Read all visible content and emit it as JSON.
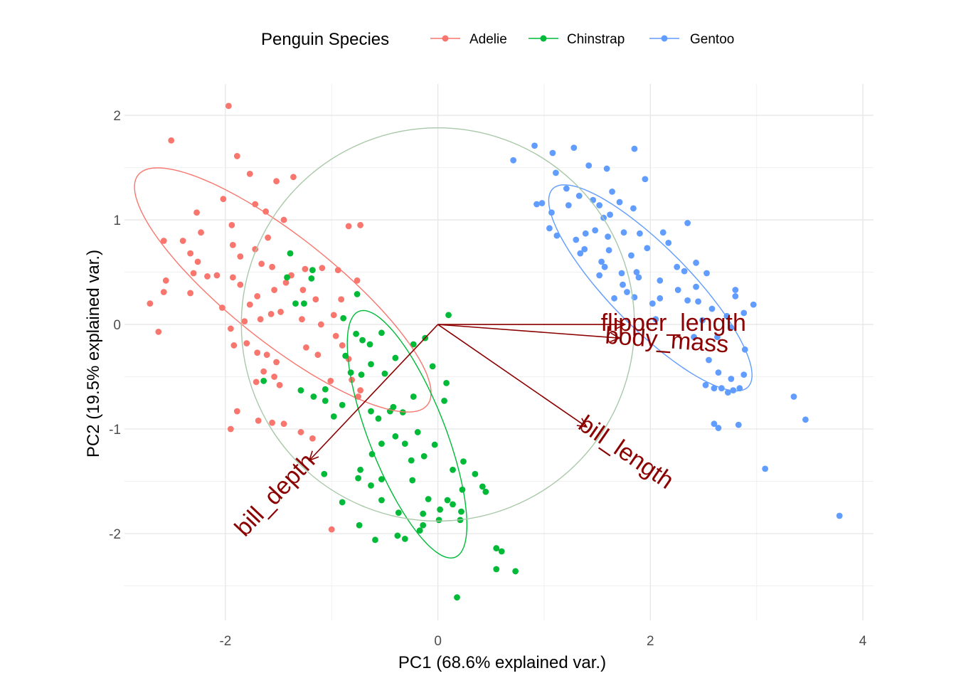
{
  "chart_data": {
    "type": "scatter",
    "title": "",
    "xlabel": "PC1 (68.6% explained var.)",
    "ylabel": "PC2 (19.5% explained var.)",
    "xlim": [
      -2.95,
      4.1
    ],
    "ylim": [
      -2.83,
      2.3
    ],
    "x_ticks": [
      -2,
      0,
      2,
      4
    ],
    "y_ticks": [
      -2,
      -1,
      0,
      1,
      2
    ],
    "x_tick_labels": [
      "-2",
      "0",
      "2",
      "4"
    ],
    "y_tick_labels": [
      "-2",
      "-1",
      "0",
      "1",
      "2"
    ],
    "grid": true,
    "legend": {
      "title": "Penguin Species",
      "placement": "top",
      "entries": [
        "Adelie",
        "Chinstrap",
        "Gentoo"
      ]
    },
    "circle": {
      "center": [
        0,
        0
      ],
      "radius": 1.85,
      "color": "#a8c8a8"
    },
    "arrows": [
      {
        "label": "flipper_length",
        "end": [
          1.76,
          0.0
        ]
      },
      {
        "label": "body_mass",
        "end": [
          1.71,
          -0.13
        ]
      },
      {
        "label": "bill_length",
        "end": [
          1.4,
          -0.98
        ]
      },
      {
        "label": "bill_depth",
        "end": [
          -1.21,
          -1.3
        ]
      }
    ],
    "arrow_color": "#8b0000",
    "series": [
      {
        "name": "Adelie",
        "color": "#f8766d",
        "ellipse": {
          "center": [
            -1.46,
            0.33
          ],
          "semi_axes": [
            1.75,
            0.5
          ],
          "angle_deg": -39
        },
        "points": [
          [
            -1.97,
            2.09
          ],
          [
            -2.51,
            1.76
          ],
          [
            -1.89,
            1.61
          ],
          [
            -1.77,
            1.44
          ],
          [
            -1.52,
            1.37
          ],
          [
            -1.36,
            1.41
          ],
          [
            -2.27,
            1.07
          ],
          [
            -2.02,
            1.2
          ],
          [
            -2.23,
            0.88
          ],
          [
            -1.72,
            1.15
          ],
          [
            -1.62,
            1.08
          ],
          [
            -1.94,
            0.95
          ],
          [
            -2.4,
            0.8
          ],
          [
            -2.33,
            0.68
          ],
          [
            -2.26,
            0.6
          ],
          [
            -1.45,
            1.0
          ],
          [
            -1.6,
            0.83
          ],
          [
            -2.08,
            0.47
          ],
          [
            -2.17,
            0.46
          ],
          [
            -2.3,
            0.49
          ],
          [
            -2.33,
            0.3
          ],
          [
            -2.71,
            0.2
          ],
          [
            -1.93,
            0.45
          ],
          [
            -2.03,
            0.16
          ],
          [
            -1.86,
            0.38
          ],
          [
            -1.72,
            0.72
          ],
          [
            -1.86,
            0.65
          ],
          [
            -1.93,
            0.76
          ],
          [
            -1.66,
            0.58
          ],
          [
            -1.56,
            0.55
          ],
          [
            -1.38,
            0.47
          ],
          [
            -1.25,
            0.53
          ],
          [
            -1.09,
            0.54
          ],
          [
            -0.94,
            0.52
          ],
          [
            -0.84,
            0.94
          ],
          [
            -1.15,
            0.24
          ],
          [
            -1.27,
            0.33
          ],
          [
            -1.43,
            0.4
          ],
          [
            -1.54,
            0.33
          ],
          [
            -1.7,
            0.27
          ],
          [
            -1.77,
            0.19
          ],
          [
            -1.82,
            0.03
          ],
          [
            -1.95,
            -0.04
          ],
          [
            -1.67,
            0.05
          ],
          [
            -1.57,
            0.1
          ],
          [
            -1.48,
            0.12
          ],
          [
            -1.28,
            0.05
          ],
          [
            -1.1,
            0.0
          ],
          [
            -0.98,
            0.09
          ],
          [
            -0.91,
            0.24
          ],
          [
            -1.92,
            -0.2
          ],
          [
            -1.8,
            -0.18
          ],
          [
            -1.7,
            -0.27
          ],
          [
            -1.61,
            -0.29
          ],
          [
            -1.52,
            -0.36
          ],
          [
            -1.64,
            -0.45
          ],
          [
            -1.54,
            -0.5
          ],
          [
            -1.71,
            -0.55
          ],
          [
            -1.49,
            -0.58
          ],
          [
            -1.24,
            -0.22
          ],
          [
            -1.13,
            -0.29
          ],
          [
            -0.96,
            -0.11
          ],
          [
            -0.9,
            -0.2
          ],
          [
            -0.84,
            -0.33
          ],
          [
            -0.81,
            -0.53
          ],
          [
            -0.73,
            -0.63
          ],
          [
            -1.01,
            -0.54
          ],
          [
            -1.89,
            -0.83
          ],
          [
            -1.95,
            -1.0
          ],
          [
            -1.69,
            -0.92
          ],
          [
            -1.56,
            -0.94
          ],
          [
            -1.45,
            -0.95
          ],
          [
            -1.29,
            -1.03
          ],
          [
            -1.18,
            -1.09
          ],
          [
            -0.75,
            -0.69
          ],
          [
            -0.76,
            0.42
          ],
          [
            -0.73,
            0.95
          ],
          [
            -1.0,
            -1.96
          ],
          [
            -2.56,
            0.42
          ],
          [
            -2.58,
            0.31
          ],
          [
            -2.63,
            -0.07
          ],
          [
            -2.58,
            0.8
          ]
        ]
      },
      {
        "name": "Chinstrap",
        "color": "#00ba38",
        "ellipse": {
          "center": [
            -0.29,
            -1.05
          ],
          "semi_axes": [
            1.26,
            0.36
          ],
          "angle_deg": -69
        },
        "points": [
          [
            -1.39,
            0.68
          ],
          [
            -1.18,
            0.52
          ],
          [
            -1.42,
            0.45
          ],
          [
            -1.19,
            0.44
          ],
          [
            -1.26,
            0.2
          ],
          [
            -1.34,
            0.2
          ],
          [
            -0.76,
            0.29
          ],
          [
            -0.89,
            0.06
          ],
          [
            -0.77,
            -0.09
          ],
          [
            -0.71,
            -0.15
          ],
          [
            -0.64,
            -0.19
          ],
          [
            -0.87,
            -0.3
          ],
          [
            -0.82,
            -0.46
          ],
          [
            -0.72,
            -0.48
          ],
          [
            -0.63,
            -0.38
          ],
          [
            -0.53,
            -0.08
          ],
          [
            -0.4,
            -0.32
          ],
          [
            -0.5,
            -0.47
          ],
          [
            -0.23,
            -0.19
          ],
          [
            -0.12,
            -0.13
          ],
          [
            0.1,
            0.09
          ],
          [
            -0.05,
            -0.4
          ],
          [
            0.08,
            -0.56
          ],
          [
            0.06,
            -0.73
          ],
          [
            -0.23,
            -0.69
          ],
          [
            -0.33,
            -0.84
          ],
          [
            -0.45,
            -0.83
          ],
          [
            -0.56,
            -0.9
          ],
          [
            -0.63,
            -0.83
          ],
          [
            -0.9,
            -0.77
          ],
          [
            -0.98,
            -0.88
          ],
          [
            -0.4,
            -1.07
          ],
          [
            -0.31,
            -1.14
          ],
          [
            -0.19,
            -1.03
          ],
          [
            -0.13,
            -1.26
          ],
          [
            -0.25,
            -1.3
          ],
          [
            -0.53,
            -1.14
          ],
          [
            -0.62,
            -1.24
          ],
          [
            -0.73,
            -1.39
          ],
          [
            -0.53,
            -1.48
          ],
          [
            -0.24,
            -1.49
          ],
          [
            0.14,
            -1.39
          ],
          [
            0.24,
            -1.31
          ],
          [
            0.35,
            -1.43
          ],
          [
            0.45,
            -1.6
          ],
          [
            0.23,
            -1.58
          ],
          [
            0.14,
            -1.72
          ],
          [
            0.02,
            -1.77
          ],
          [
            -0.09,
            -1.67
          ],
          [
            -0.14,
            -1.81
          ],
          [
            -0.37,
            -1.8
          ],
          [
            -0.53,
            -1.68
          ],
          [
            -0.63,
            -1.54
          ],
          [
            -0.75,
            -1.47
          ],
          [
            -0.9,
            -1.7
          ],
          [
            -1.07,
            -1.43
          ],
          [
            -0.74,
            -1.92
          ],
          [
            -0.59,
            -2.06
          ],
          [
            -0.38,
            -2.02
          ],
          [
            -0.31,
            -2.05
          ],
          [
            -0.14,
            -1.92
          ],
          [
            -0.17,
            -1.97
          ],
          [
            0.22,
            -1.79
          ],
          [
            0.01,
            -1.87
          ],
          [
            0.21,
            -1.87
          ],
          [
            0.09,
            -1.68
          ],
          [
            0.42,
            -1.55
          ],
          [
            0.55,
            -2.14
          ],
          [
            0.6,
            -2.17
          ],
          [
            0.55,
            -2.34
          ],
          [
            0.73,
            -2.36
          ],
          [
            0.18,
            -2.61
          ],
          [
            -1.64,
            -0.54
          ],
          [
            -1.29,
            -0.63
          ],
          [
            -1.17,
            -0.69
          ],
          [
            -1.06,
            -0.73
          ],
          [
            -1.06,
            -0.62
          ],
          [
            -0.42,
            -0.79
          ],
          [
            -0.03,
            -1.15
          ]
        ]
      },
      {
        "name": "Gentoo",
        "color": "#619cff",
        "ellipse": {
          "center": [
            2.0,
            0.35
          ],
          "semi_axes": [
            1.32,
            0.38
          ],
          "angle_deg": -46
        },
        "points": [
          [
            0.91,
            1.71
          ],
          [
            1.28,
            1.69
          ],
          [
            1.08,
            1.64
          ],
          [
            1.85,
            1.68
          ],
          [
            0.71,
            1.57
          ],
          [
            1.59,
            1.49
          ],
          [
            1.11,
            1.45
          ],
          [
            1.95,
            1.39
          ],
          [
            1.21,
            1.3
          ],
          [
            1.33,
            1.23
          ],
          [
            1.52,
            1.14
          ],
          [
            1.64,
            1.27
          ],
          [
            0.98,
            1.16
          ],
          [
            0.93,
            1.15
          ],
          [
            1.07,
            1.07
          ],
          [
            1.23,
            1.14
          ],
          [
            1.46,
            1.19
          ],
          [
            1.71,
            1.17
          ],
          [
            1.84,
            1.11
          ],
          [
            1.62,
            1.05
          ],
          [
            1.56,
            1.02
          ],
          [
            1.48,
            0.9
          ],
          [
            1.39,
            0.87
          ],
          [
            1.3,
            0.81
          ],
          [
            1.12,
            0.85
          ],
          [
            1.05,
            0.92
          ],
          [
            1.75,
            0.88
          ],
          [
            1.9,
            0.87
          ],
          [
            2.12,
            0.88
          ],
          [
            2.17,
            0.78
          ],
          [
            1.97,
            0.73
          ],
          [
            1.82,
            0.66
          ],
          [
            1.61,
            0.71
          ],
          [
            1.54,
            0.6
          ],
          [
            1.38,
            0.72
          ],
          [
            1.34,
            0.68
          ],
          [
            1.57,
            0.55
          ],
          [
            1.52,
            0.47
          ],
          [
            1.73,
            0.49
          ],
          [
            1.89,
            0.45
          ],
          [
            2.09,
            0.42
          ],
          [
            2.25,
            0.55
          ],
          [
            2.43,
            0.59
          ],
          [
            2.53,
            0.49
          ],
          [
            2.43,
            0.36
          ],
          [
            2.26,
            0.33
          ],
          [
            2.09,
            0.25
          ],
          [
            2.02,
            0.2
          ],
          [
            1.85,
            0.26
          ],
          [
            1.78,
            0.31
          ],
          [
            1.66,
            0.25
          ],
          [
            2.35,
            0.23
          ],
          [
            2.45,
            0.22
          ],
          [
            2.58,
            0.15
          ],
          [
            2.72,
            0.08
          ],
          [
            2.8,
            0.27
          ],
          [
            2.97,
            0.19
          ],
          [
            2.49,
            0.04
          ],
          [
            2.41,
            -0.12
          ],
          [
            2.63,
            -0.12
          ],
          [
            2.76,
            -0.03
          ],
          [
            2.89,
            -0.24
          ],
          [
            2.55,
            -0.34
          ],
          [
            2.64,
            -0.46
          ],
          [
            2.76,
            -0.52
          ],
          [
            2.88,
            -0.48
          ],
          [
            2.67,
            -0.61
          ],
          [
            2.73,
            -0.65
          ],
          [
            2.78,
            -0.63
          ],
          [
            2.84,
            -0.61
          ],
          [
            2.52,
            -0.58
          ],
          [
            2.6,
            -0.61
          ],
          [
            2.6,
            -0.95
          ],
          [
            2.64,
            -0.99
          ],
          [
            2.83,
            -0.96
          ],
          [
            3.35,
            -0.69
          ],
          [
            3.46,
            -0.91
          ],
          [
            3.08,
            -1.38
          ],
          [
            3.78,
            -1.83
          ],
          [
            2.8,
            0.33
          ],
          [
            2.88,
            0.11
          ],
          [
            2.35,
            0.97
          ],
          [
            1.6,
            0.84
          ],
          [
            1.42,
            1.52
          ],
          [
            2.05,
            0.05
          ],
          [
            2.32,
            0.51
          ],
          [
            1.74,
            0.38
          ],
          [
            1.87,
            0.5
          ]
        ]
      }
    ]
  }
}
